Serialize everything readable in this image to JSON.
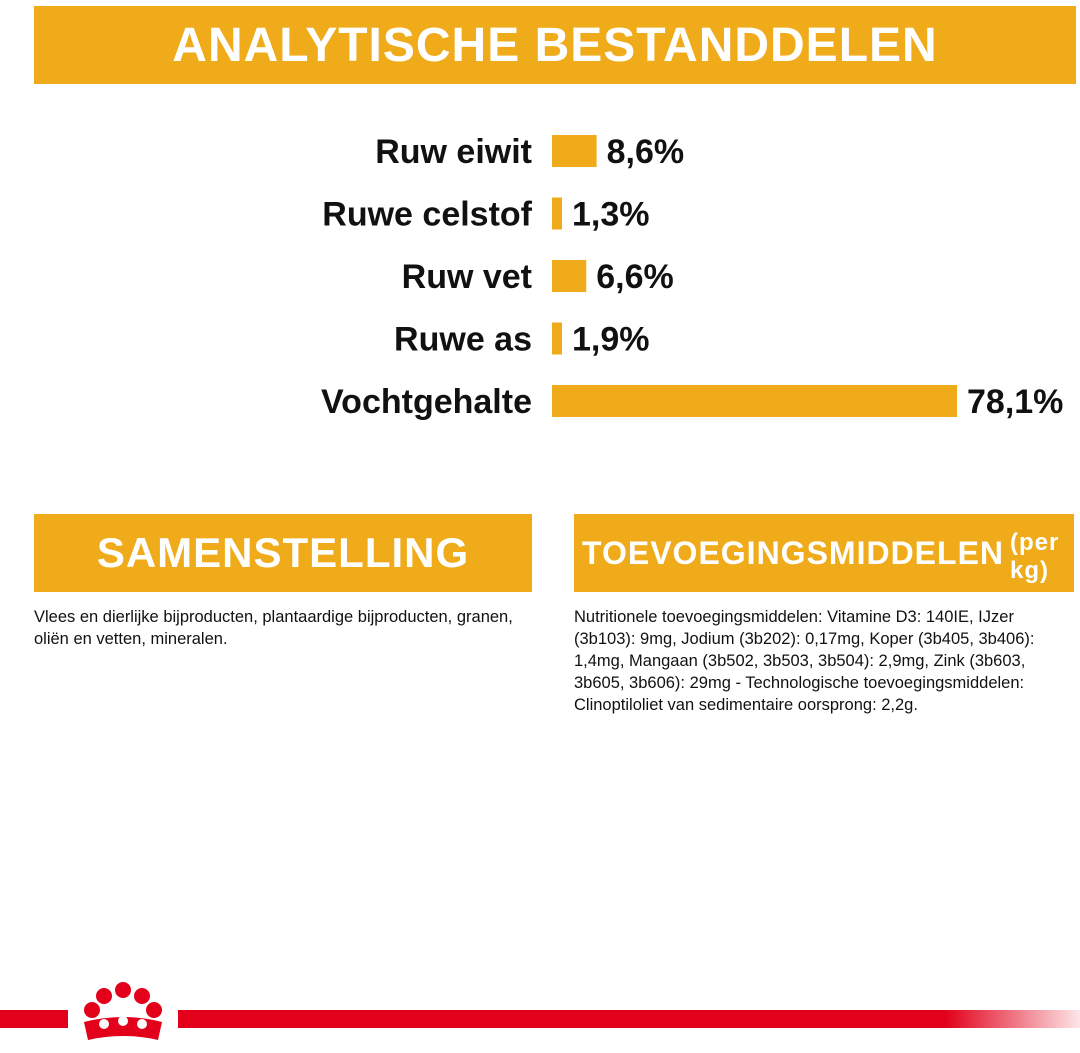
{
  "header": {
    "title": "ANALYTISCHE BESTANDDELEN"
  },
  "chart_data": {
    "type": "bar",
    "orientation": "horizontal",
    "categories": [
      "Ruw eiwit",
      "Ruwe celstof",
      "Ruw vet",
      "Ruwe as",
      "Vochtgehalte"
    ],
    "values": [
      8.6,
      1.3,
      6.6,
      1.9,
      78.1
    ],
    "value_labels": [
      "8,6%",
      "1,3%",
      "6,6%",
      "1,9%",
      "78,1%"
    ],
    "unit": "%",
    "colors": {
      "bar": "#f0ab1a"
    },
    "grid": false,
    "legend": "none",
    "title": "",
    "xlabel": "",
    "ylabel": ""
  },
  "composition": {
    "title": "SAMENSTELLING",
    "text": "Vlees en dierlijke bijproducten, plantaardige bijproducten, granen, oliën en vetten, mineralen."
  },
  "additives": {
    "title": "TOEVOEGINGSMIDDELEN",
    "title_suffix": "(per kg)",
    "text": "Nutritionele toevoegingsmiddelen: Vitamine D3: 140IE, IJzer (3b103): 9mg, Jodium (3b202): 0,17mg, Koper (3b405, 3b406): 1,4mg, Mangaan (3b502, 3b503, 3b504): 2,9mg, Zink (3b603, 3b605, 3b606): 29mg - Technologische toevoegingsmiddelen: Clinoptiloliet van sedimentaire oorsprong: 2,2g."
  },
  "footer": {
    "logo": "royal-crown-icon",
    "line_color": "#e2001a"
  }
}
